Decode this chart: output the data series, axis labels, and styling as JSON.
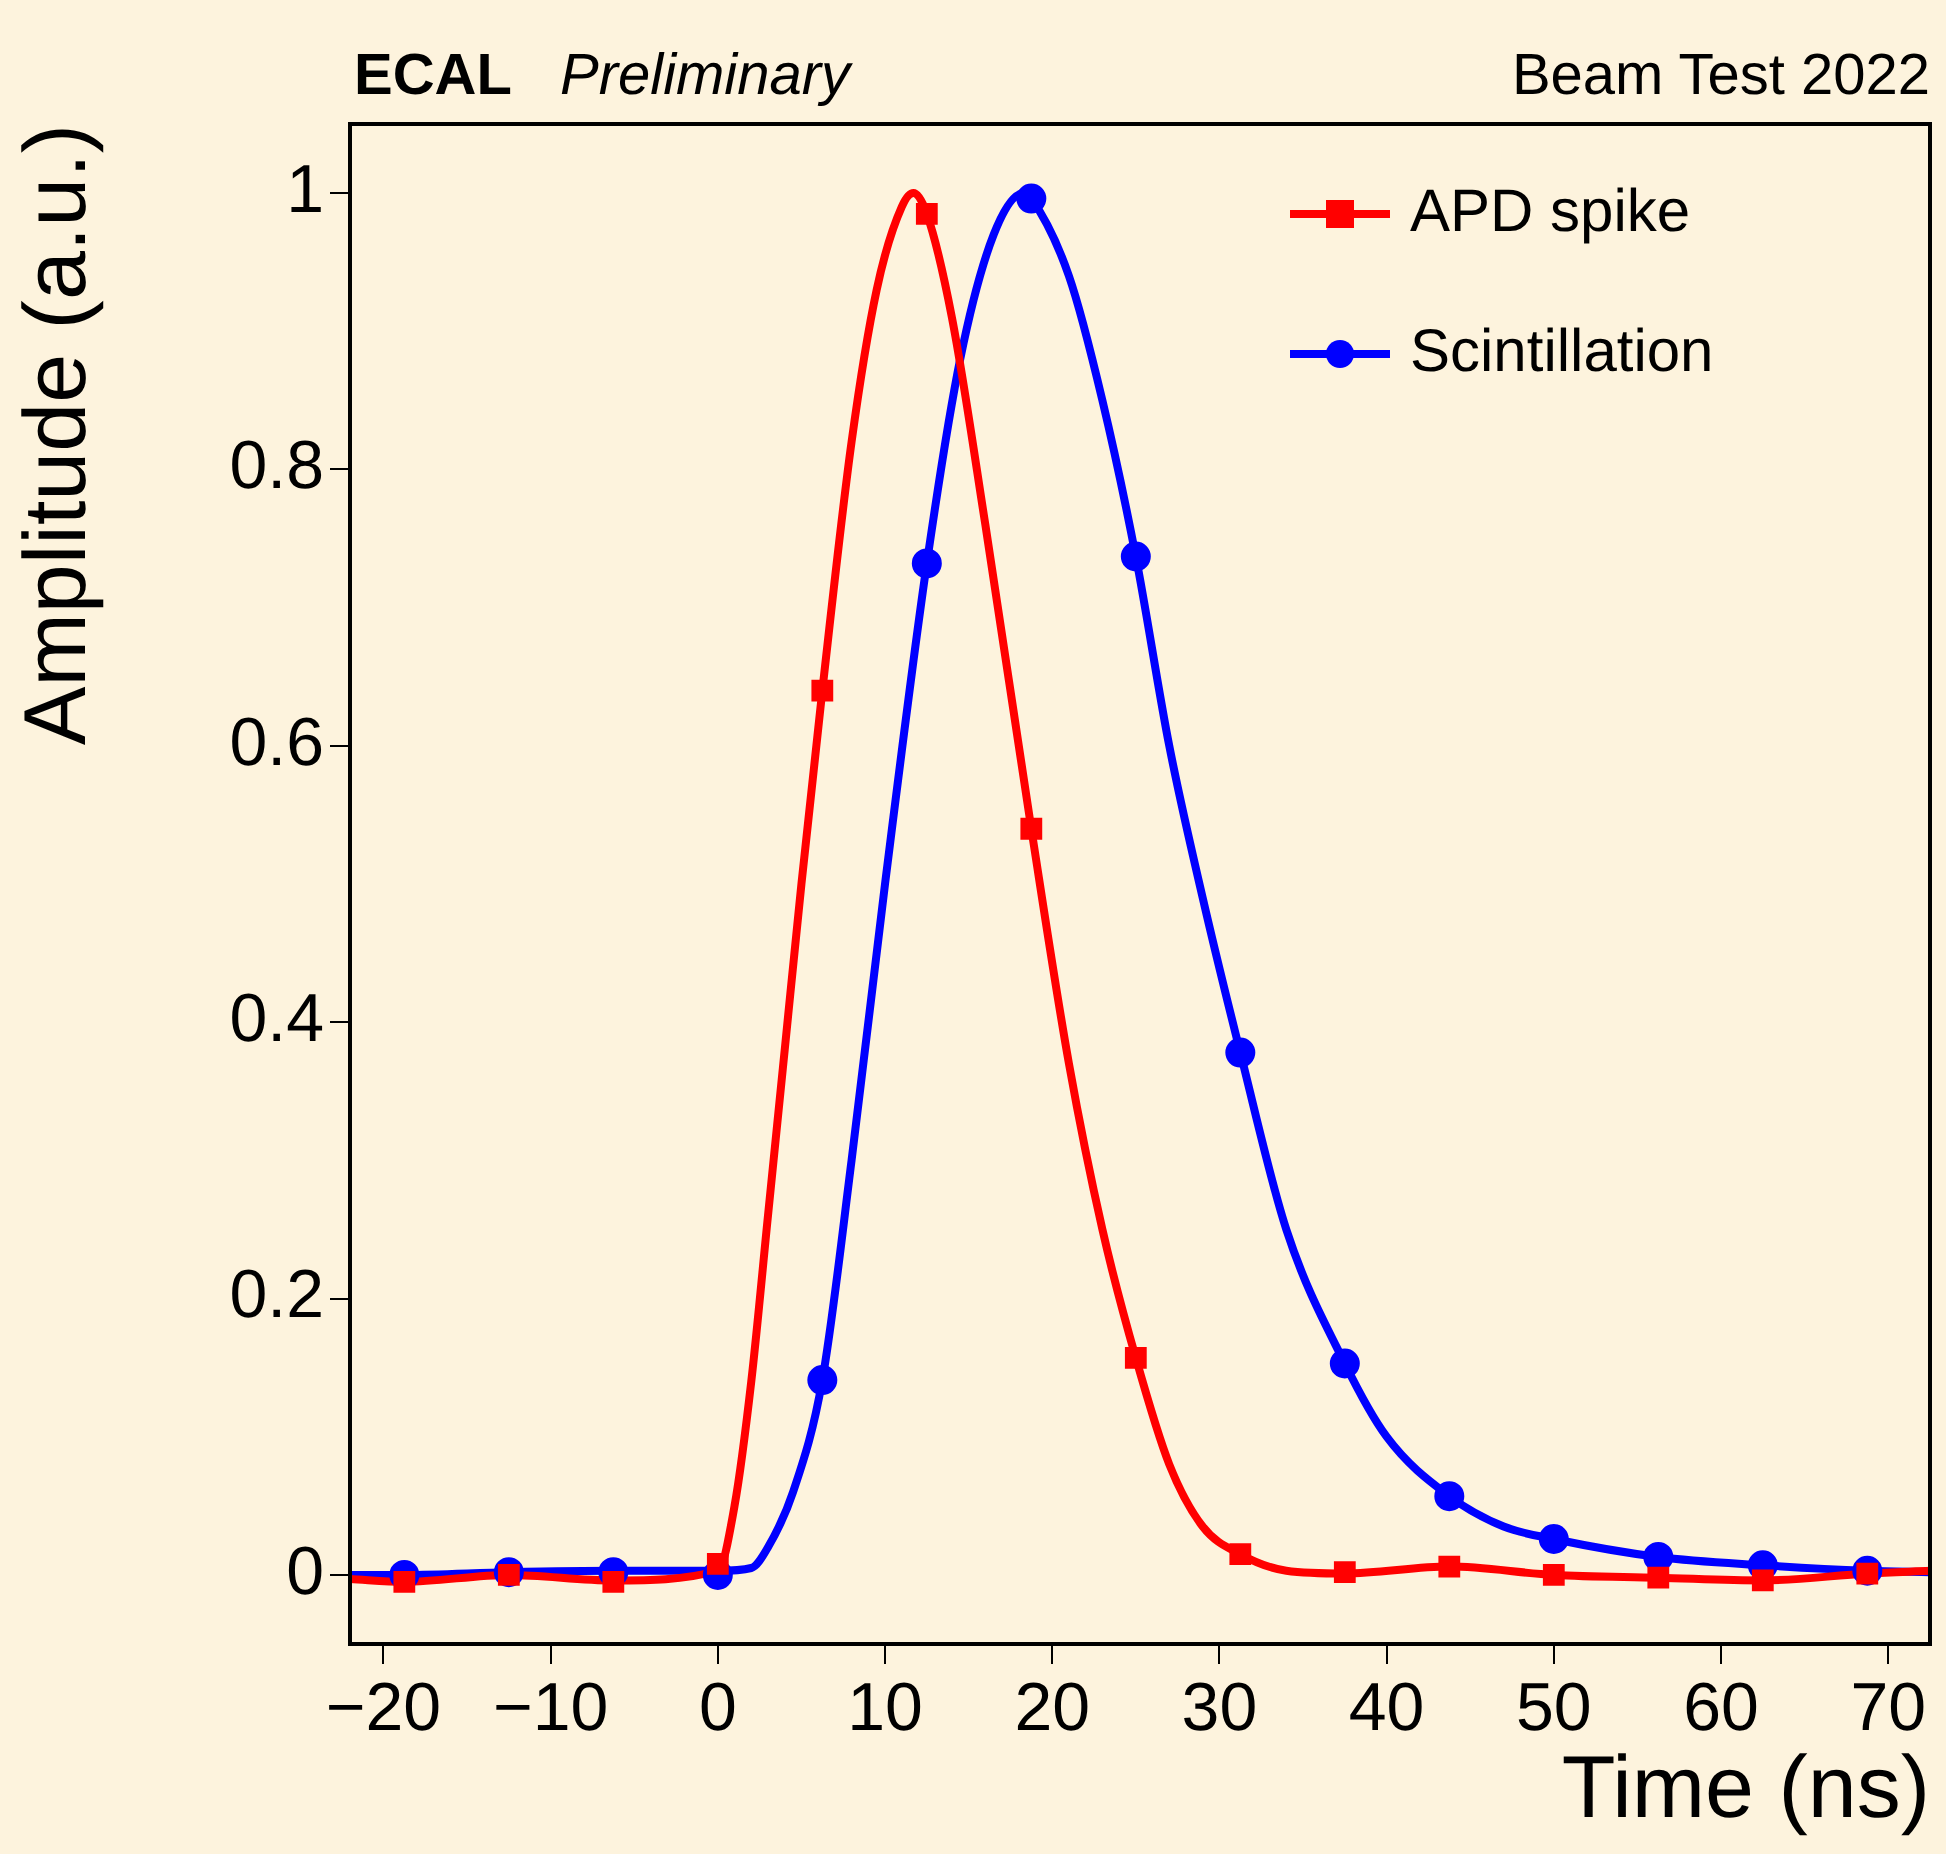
{
  "chart_data": {
    "type": "scatter",
    "xlabel": "Time (ns)",
    "ylabel": "Amplitude (a.u.)",
    "annotations": [
      "ECAL",
      "Preliminary",
      "Beam Test 2022"
    ],
    "xlim": [
      -22,
      72.5
    ],
    "xticks": [
      -20,
      -10,
      0,
      10,
      20,
      30,
      40,
      50,
      60,
      70
    ],
    "ylim": [
      -0.05,
      1.05
    ],
    "yticks": [
      0,
      0.2,
      0.4,
      0.6,
      0.8,
      1
    ],
    "grid": false,
    "legend": "top right",
    "line_style": "solid",
    "series": [
      {
        "name": "APD spike",
        "marker": "square",
        "color": "#ff0000",
        "x": [
          -18.75,
          -12.5,
          -6.25,
          0,
          6.25,
          12.5,
          18.75,
          25,
          31.25,
          37.5,
          43.75,
          50,
          56.25,
          62.5,
          68.75
        ],
        "values": [
          -0.005,
          0,
          -0.005,
          0.008,
          0.64,
          0.985,
          0.54,
          0.157,
          0.015,
          0.002,
          0.006,
          0,
          -0.002,
          -0.004,
          0.001
        ]
      },
      {
        "name": "Scintillation",
        "marker": "circle",
        "color": "#0000ff",
        "x": [
          -18.75,
          -12.5,
          -6.25,
          0,
          6.25,
          12.5,
          18.75,
          25,
          31.25,
          37.5,
          43.75,
          50,
          56.25,
          62.5,
          68.75
        ],
        "values": [
          0,
          0.002,
          0.002,
          0,
          0.141,
          0.732,
          0.996,
          0.737,
          0.378,
          0.153,
          0.057,
          0.026,
          0.013,
          0.007,
          0.003
        ]
      },
      {
        "type": "line",
        "marker": "none",
        "color": "#ff0000",
        "x": [
          -22,
          -18.75,
          -12.5,
          -6.25,
          0,
          1,
          2,
          3,
          4,
          5,
          6.25,
          8,
          9.5,
          11,
          11.7,
          12.5,
          14,
          16,
          18.75,
          21,
          23,
          25,
          27,
          29,
          31.25,
          34,
          37.5,
          43.75,
          50,
          56.25,
          62.5,
          68.75,
          72.5
        ],
        "values": [
          -0.003,
          -0.005,
          0,
          -0.004,
          0.003,
          0.05,
          0.14,
          0.26,
          0.38,
          0.5,
          0.64,
          0.82,
          0.93,
          0.99,
          1,
          0.985,
          0.91,
          0.76,
          0.54,
          0.37,
          0.25,
          0.157,
          0.08,
          0.035,
          0.015,
          0.003,
          0.001,
          0.006,
          0,
          -0.002,
          -0.004,
          0.001,
          0.003
        ]
      },
      {
        "type": "line",
        "marker": "none",
        "color": "#0000ff",
        "x": [
          -22,
          -18.75,
          -12.5,
          -6.25,
          0,
          2,
          3,
          4.5,
          6.25,
          8,
          10,
          12.5,
          14.5,
          16.5,
          18.3,
          18.75,
          21,
          23,
          25,
          27,
          29,
          31.25,
          34,
          37.5,
          40,
          43.75,
          47,
          50,
          56.25,
          62.5,
          68.75,
          72.5
        ],
        "values": [
          0,
          0,
          0.002,
          0.003,
          0.003,
          0.005,
          0.02,
          0.06,
          0.141,
          0.3,
          0.5,
          0.732,
          0.88,
          0.97,
          1,
          0.996,
          0.94,
          0.85,
          0.737,
          0.6,
          0.49,
          0.378,
          0.25,
          0.153,
          0.1,
          0.057,
          0.035,
          0.026,
          0.013,
          0.007,
          0.003,
          0.002
        ]
      }
    ]
  }
}
